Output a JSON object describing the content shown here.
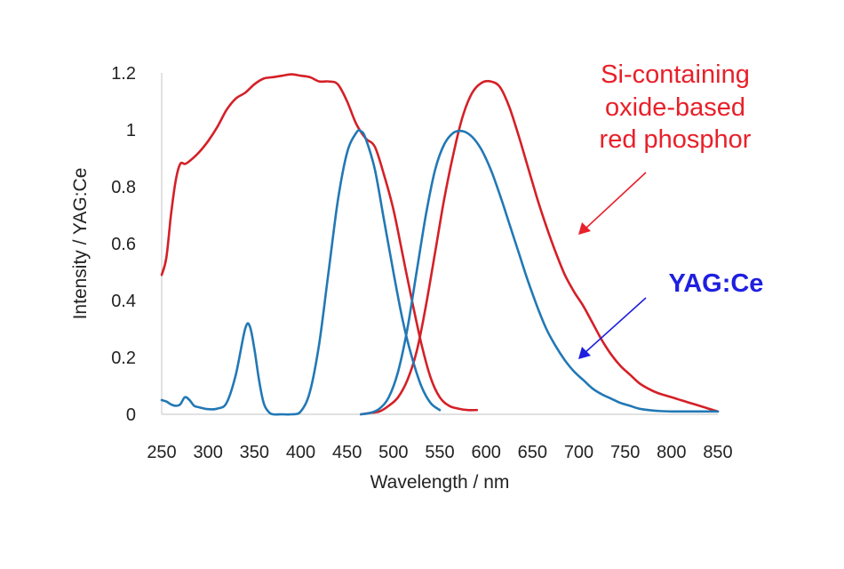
{
  "chart_data": {
    "type": "line",
    "title": "",
    "xlabel": "Wavelength / nm",
    "ylabel": "Intensity / YAG:Ce",
    "xlim": [
      250,
      850
    ],
    "ylim": [
      0,
      1.2
    ],
    "x_ticks": [
      250,
      300,
      350,
      400,
      450,
      500,
      550,
      600,
      650,
      700,
      750,
      800,
      850
    ],
    "y_ticks": [
      0,
      0.2,
      0.4,
      0.6,
      0.8,
      1,
      1.2
    ],
    "grid": false,
    "series": [
      {
        "color": "#d42027",
        "points": [
          [
            250,
            0.49
          ],
          [
            255,
            0.55
          ],
          [
            260,
            0.7
          ],
          [
            265,
            0.82
          ],
          [
            270,
            0.88
          ],
          [
            275,
            0.88
          ],
          [
            280,
            0.89
          ],
          [
            290,
            0.92
          ],
          [
            300,
            0.96
          ],
          [
            310,
            1.01
          ],
          [
            320,
            1.07
          ],
          [
            330,
            1.11
          ],
          [
            340,
            1.13
          ],
          [
            350,
            1.16
          ],
          [
            360,
            1.18
          ],
          [
            370,
            1.185
          ],
          [
            380,
            1.19
          ],
          [
            390,
            1.195
          ],
          [
            400,
            1.19
          ],
          [
            410,
            1.185
          ],
          [
            420,
            1.17
          ],
          [
            430,
            1.17
          ],
          [
            440,
            1.16
          ],
          [
            450,
            1.1
          ],
          [
            460,
            1.02
          ],
          [
            470,
            0.97
          ],
          [
            480,
            0.94
          ],
          [
            490,
            0.84
          ],
          [
            500,
            0.72
          ],
          [
            510,
            0.56
          ],
          [
            520,
            0.4
          ],
          [
            530,
            0.25
          ],
          [
            540,
            0.13
          ],
          [
            550,
            0.06
          ],
          [
            560,
            0.03
          ],
          [
            570,
            0.02
          ],
          [
            580,
            0.015
          ],
          [
            590,
            0.015
          ]
        ]
      },
      {
        "color": "#d42027",
        "points": [
          [
            465,
            0.0
          ],
          [
            475,
            0.005
          ],
          [
            485,
            0.01
          ],
          [
            495,
            0.03
          ],
          [
            505,
            0.06
          ],
          [
            515,
            0.12
          ],
          [
            525,
            0.22
          ],
          [
            535,
            0.38
          ],
          [
            545,
            0.57
          ],
          [
            555,
            0.76
          ],
          [
            565,
            0.92
          ],
          [
            575,
            1.05
          ],
          [
            585,
            1.13
          ],
          [
            595,
            1.165
          ],
          [
            605,
            1.17
          ],
          [
            615,
            1.15
          ],
          [
            625,
            1.08
          ],
          [
            635,
            0.98
          ],
          [
            645,
            0.87
          ],
          [
            655,
            0.76
          ],
          [
            665,
            0.66
          ],
          [
            675,
            0.57
          ],
          [
            685,
            0.49
          ],
          [
            695,
            0.43
          ],
          [
            705,
            0.38
          ],
          [
            715,
            0.32
          ],
          [
            725,
            0.26
          ],
          [
            735,
            0.21
          ],
          [
            745,
            0.17
          ],
          [
            755,
            0.14
          ],
          [
            765,
            0.11
          ],
          [
            775,
            0.09
          ],
          [
            785,
            0.075
          ],
          [
            795,
            0.065
          ],
          [
            805,
            0.055
          ],
          [
            815,
            0.045
          ],
          [
            825,
            0.035
          ],
          [
            835,
            0.025
          ],
          [
            845,
            0.015
          ],
          [
            850,
            0.01
          ]
        ]
      },
      {
        "color": "#2278b5",
        "points": [
          [
            250,
            0.05
          ],
          [
            255,
            0.045
          ],
          [
            260,
            0.035
          ],
          [
            265,
            0.03
          ],
          [
            270,
            0.035
          ],
          [
            275,
            0.06
          ],
          [
            280,
            0.05
          ],
          [
            285,
            0.03
          ],
          [
            290,
            0.025
          ],
          [
            300,
            0.018
          ],
          [
            310,
            0.02
          ],
          [
            320,
            0.04
          ],
          [
            330,
            0.14
          ],
          [
            340,
            0.3
          ],
          [
            345,
            0.31
          ],
          [
            350,
            0.23
          ],
          [
            355,
            0.12
          ],
          [
            360,
            0.04
          ],
          [
            365,
            0.01
          ],
          [
            370,
            0.0
          ],
          [
            380,
            0.0
          ],
          [
            390,
            0.0
          ],
          [
            400,
            0.01
          ],
          [
            410,
            0.08
          ],
          [
            420,
            0.25
          ],
          [
            430,
            0.5
          ],
          [
            440,
            0.75
          ],
          [
            450,
            0.92
          ],
          [
            460,
            0.99
          ],
          [
            465,
            0.995
          ],
          [
            470,
            0.97
          ],
          [
            480,
            0.86
          ],
          [
            490,
            0.68
          ],
          [
            500,
            0.5
          ],
          [
            510,
            0.33
          ],
          [
            520,
            0.2
          ],
          [
            530,
            0.1
          ],
          [
            540,
            0.04
          ],
          [
            550,
            0.015
          ]
        ]
      },
      {
        "color": "#2278b5",
        "points": [
          [
            465,
            0.0
          ],
          [
            475,
            0.005
          ],
          [
            485,
            0.02
          ],
          [
            495,
            0.06
          ],
          [
            505,
            0.15
          ],
          [
            515,
            0.3
          ],
          [
            525,
            0.5
          ],
          [
            535,
            0.7
          ],
          [
            545,
            0.86
          ],
          [
            555,
            0.95
          ],
          [
            565,
            0.99
          ],
          [
            575,
            0.995
          ],
          [
            585,
            0.975
          ],
          [
            595,
            0.93
          ],
          [
            605,
            0.86
          ],
          [
            615,
            0.77
          ],
          [
            625,
            0.67
          ],
          [
            635,
            0.57
          ],
          [
            645,
            0.47
          ],
          [
            655,
            0.38
          ],
          [
            665,
            0.3
          ],
          [
            675,
            0.24
          ],
          [
            685,
            0.19
          ],
          [
            695,
            0.15
          ],
          [
            705,
            0.12
          ],
          [
            715,
            0.09
          ],
          [
            725,
            0.07
          ],
          [
            735,
            0.055
          ],
          [
            745,
            0.04
          ],
          [
            755,
            0.03
          ],
          [
            765,
            0.02
          ],
          [
            775,
            0.015
          ],
          [
            785,
            0.012
          ],
          [
            800,
            0.01
          ],
          [
            815,
            0.01
          ],
          [
            830,
            0.01
          ],
          [
            850,
            0.01
          ]
        ]
      }
    ],
    "annotations": {
      "red_label": [
        "Si-containing",
        "oxide-based",
        "red phosphor"
      ],
      "red_color": "#e8202a",
      "blue_label": "YAG:Ce",
      "blue_color": "#1f1fe0"
    }
  }
}
